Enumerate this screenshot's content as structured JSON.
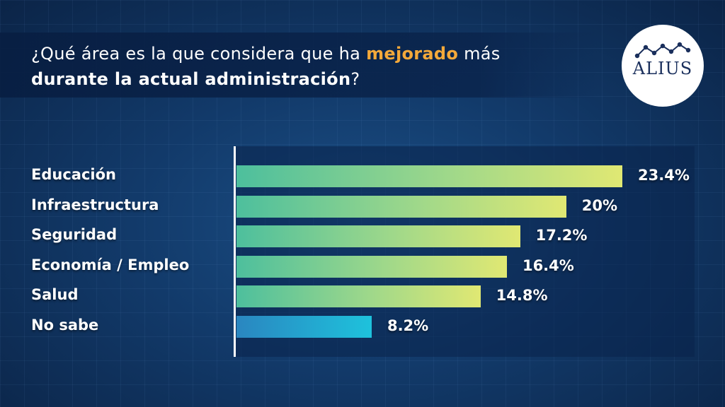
{
  "title": {
    "part1": "¿Qué área es la que considera que ha ",
    "highlight": "mejorado",
    "part2": " más",
    "part3_bold": "durante la actual administración",
    "part4": "?"
  },
  "logo": {
    "text": "ALIUS",
    "icon": "line-chart-icon"
  },
  "colors": {
    "highlight": "#f4a93a",
    "bar_gradient_start": "#4dbf9d",
    "bar_gradient_end": "#e0e873",
    "nosabe_gradient_start": "#2a86c0",
    "nosabe_gradient_end": "#1ec2dc"
  },
  "chart_data": {
    "type": "bar",
    "orientation": "horizontal",
    "categories": [
      "Educación",
      "Infraestructura",
      "Seguridad",
      "Economía / Empleo",
      "Salud",
      "No sabe"
    ],
    "values": [
      23.4,
      20,
      17.2,
      16.4,
      14.8,
      8.2
    ],
    "value_labels": [
      "23.4%",
      "20%",
      "17.2%",
      "16.4%",
      "14.8%",
      "8.2%"
    ],
    "xlim": [
      0,
      25
    ]
  }
}
